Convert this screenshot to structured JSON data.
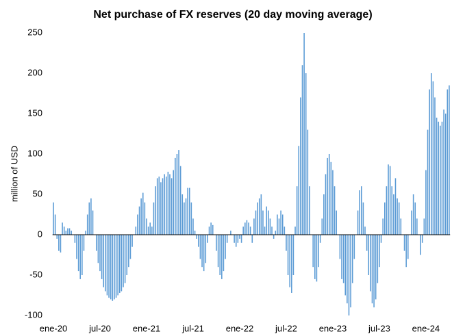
{
  "chart_data": {
    "type": "bar",
    "title": "Net purchase of FX reserves (20 day moving average)",
    "y_label": "million of USD",
    "color": "#5b9bd5",
    "ylim": [
      -100,
      250
    ],
    "yticks": [
      -100,
      -50,
      0,
      50,
      100,
      150,
      200,
      250
    ],
    "categories": [
      "ene-20",
      null,
      null,
      null,
      null,
      null,
      null,
      null,
      null,
      null,
      null,
      null,
      null,
      null,
      null,
      null,
      null,
      null,
      null,
      null,
      null,
      null,
      null,
      null,
      null,
      null,
      "jul-20",
      null,
      null,
      null,
      null,
      null,
      null,
      null,
      null,
      null,
      null,
      null,
      null,
      null,
      null,
      null,
      null,
      null,
      null,
      null,
      null,
      null,
      null,
      null,
      null,
      null,
      "ene-21",
      null,
      null,
      null,
      null,
      null,
      null,
      null,
      null,
      null,
      null,
      null,
      null,
      null,
      null,
      null,
      null,
      null,
      null,
      null,
      null,
      null,
      null,
      null,
      null,
      null,
      "jul-21",
      null,
      null,
      null,
      null,
      null,
      null,
      null,
      null,
      null,
      null,
      null,
      null,
      null,
      null,
      null,
      null,
      null,
      null,
      null,
      null,
      null,
      null,
      null,
      null,
      null,
      "ene-22",
      null,
      null,
      null,
      null,
      null,
      null,
      null,
      null,
      null,
      null,
      null,
      null,
      null,
      null,
      null,
      null,
      null,
      null,
      null,
      null,
      null,
      null,
      null,
      null,
      null,
      "jul-22",
      null,
      null,
      null,
      null,
      null,
      null,
      null,
      null,
      null,
      null,
      null,
      null,
      null,
      null,
      null,
      null,
      null,
      null,
      null,
      null,
      null,
      null,
      null,
      null,
      null,
      "ene-23",
      null,
      null,
      null,
      null,
      null,
      null,
      null,
      null,
      null,
      null,
      null,
      null,
      null,
      null,
      null,
      null,
      null,
      null,
      null,
      null,
      null,
      null,
      null,
      null,
      null,
      "jul-23",
      null,
      null,
      null,
      null,
      null,
      null,
      null,
      null,
      null,
      null,
      null,
      null,
      null,
      null,
      null,
      null,
      null,
      null,
      null,
      null,
      null,
      null,
      null,
      null,
      null,
      "ene-24",
      null,
      null,
      null,
      null,
      null,
      null,
      null,
      null,
      null,
      null,
      null,
      null,
      null
    ],
    "values": [
      40,
      25,
      -5,
      -20,
      -22,
      15,
      10,
      5,
      8,
      8,
      5,
      0,
      -10,
      -30,
      -45,
      -55,
      -50,
      -20,
      5,
      25,
      40,
      45,
      30,
      0,
      -20,
      -35,
      -45,
      -55,
      -65,
      -70,
      -75,
      -78,
      -80,
      -82,
      -80,
      -78,
      -75,
      -72,
      -70,
      -65,
      -60,
      -50,
      -40,
      -30,
      -15,
      0,
      10,
      25,
      35,
      45,
      52,
      40,
      20,
      10,
      15,
      10,
      40,
      60,
      70,
      72,
      65,
      70,
      75,
      72,
      78,
      75,
      70,
      80,
      95,
      100,
      105,
      85,
      50,
      40,
      45,
      58,
      58,
      40,
      20,
      5,
      -5,
      -15,
      -30,
      -40,
      -45,
      -35,
      -10,
      10,
      15,
      12,
      0,
      -20,
      -40,
      -50,
      -55,
      -45,
      -30,
      -10,
      0,
      5,
      0,
      -10,
      -15,
      -10,
      -5,
      -10,
      10,
      15,
      18,
      15,
      10,
      -10,
      20,
      30,
      40,
      45,
      50,
      30,
      10,
      35,
      30,
      20,
      10,
      -5,
      5,
      25,
      20,
      30,
      25,
      10,
      -20,
      -50,
      -65,
      -72,
      -50,
      10,
      60,
      110,
      170,
      210,
      250,
      200,
      130,
      60,
      0,
      -40,
      -55,
      -58,
      -40,
      -10,
      20,
      50,
      75,
      95,
      100,
      90,
      80,
      60,
      30,
      0,
      -30,
      -55,
      -60,
      -75,
      -85,
      -100,
      -90,
      -60,
      -30,
      0,
      30,
      55,
      60,
      40,
      10,
      -20,
      -50,
      -70,
      -85,
      -90,
      -80,
      -60,
      -40,
      -10,
      20,
      40,
      60,
      87,
      85,
      60,
      50,
      70,
      45,
      40,
      20,
      0,
      -20,
      -40,
      -30,
      0,
      30,
      50,
      40,
      20,
      0,
      -25,
      -10,
      20,
      80,
      130,
      180,
      200,
      190,
      170,
      145,
      140,
      135,
      140,
      155,
      150,
      180,
      185
    ]
  }
}
